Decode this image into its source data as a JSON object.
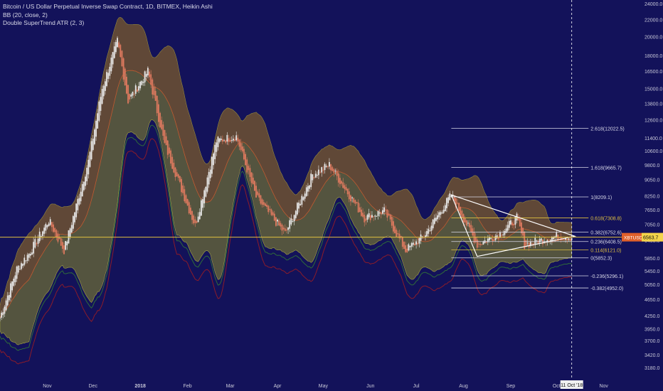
{
  "legend": {
    "title": "Bitcoin / US Dollar Perpetual Inverse Swap Contract, 1D, BITMEX, Heikin Ashi",
    "indicator_bb": "BB (20, close, 2)",
    "indicator_supertrend": "Double SuperTrend ATR (2, 3)"
  },
  "colors": {
    "background": "#13125a",
    "candle": "#e8e8e8",
    "candle_down": "#e07a5f",
    "bb_fill": "#8a8a2a",
    "upper_band_fill": "#6e3a2e",
    "supertrend_up": "#2f6b3a",
    "supertrend_down": "#8b1b2a",
    "fib_line": "#d8d8e8",
    "fib_gold": "#e0c040",
    "price_line": "#e0c040",
    "last_price_badge": "#e0602a",
    "triangle": "#ffffff"
  },
  "chart_data": {
    "type": "candlestick",
    "title": "Bitcoin / US Dollar Perpetual Inverse Swap Contract, 1D, BITMEX, Heikin Ashi",
    "y_scale": "log",
    "ylim": [
      3000,
      24500
    ],
    "y_ticks": [
      24000,
      22000,
      20000,
      18000,
      16500,
      15000,
      13800,
      12600,
      11400,
      10600,
      9800,
      9050,
      8250,
      7650,
      7050,
      6450,
      5850,
      5450,
      5050,
      4650,
      4250,
      3950,
      3700,
      3420,
      3180
    ],
    "x_ticks": [
      "Nov",
      "Dec",
      "2018",
      "Feb",
      "Mar",
      "Apr",
      "May",
      "Jun",
      "Jul",
      "Aug",
      "Sep",
      "Oct",
      "Nov"
    ],
    "x_ticks_bold": [
      "2018"
    ],
    "xlim": [
      "2017-10-01",
      "2018-11-24"
    ],
    "x_tick_dates": [
      "2017-11-01",
      "2017-12-01",
      "2018-01-01",
      "2018-02-01",
      "2018-03-01",
      "2018-04-01",
      "2018-05-01",
      "2018-06-01",
      "2018-07-01",
      "2018-08-01",
      "2018-09-01",
      "2018-10-01",
      "2018-11-01"
    ],
    "cursor_date_label": "11 Oct '18",
    "last_price": {
      "symbol": "XBTUSD",
      "value": 6563.7
    },
    "price_path": [
      [
        "2017-10-01",
        4200
      ],
      [
        "2017-10-12",
        5500
      ],
      [
        "2017-10-20",
        6000
      ],
      [
        "2017-11-02",
        7200
      ],
      [
        "2017-11-12",
        6100
      ],
      [
        "2017-11-28",
        10000
      ],
      [
        "2017-12-07",
        15000
      ],
      [
        "2017-12-17",
        19500
      ],
      [
        "2017-12-24",
        14000
      ],
      [
        "2018-01-06",
        16500
      ],
      [
        "2018-01-17",
        11000
      ],
      [
        "2018-02-06",
        7000
      ],
      [
        "2018-02-20",
        11200
      ],
      [
        "2018-03-05",
        11500
      ],
      [
        "2018-03-18",
        8200
      ],
      [
        "2018-04-06",
        6700
      ],
      [
        "2018-04-24",
        9300
      ],
      [
        "2018-05-05",
        9800
      ],
      [
        "2018-05-28",
        7300
      ],
      [
        "2018-06-10",
        7600
      ],
      [
        "2018-06-24",
        6100
      ],
      [
        "2018-07-06",
        6600
      ],
      [
        "2018-07-24",
        8300
      ],
      [
        "2018-08-10",
        6300
      ],
      [
        "2018-08-25",
        6700
      ],
      [
        "2018-09-05",
        7300
      ],
      [
        "2018-09-10",
        6300
      ],
      [
        "2018-10-01",
        6600
      ],
      [
        "2018-10-11",
        6560
      ]
    ],
    "fib_levels": [
      {
        "label": "2.618(12022.5)",
        "value": 12022.5,
        "highlight": false
      },
      {
        "label": "1.618(9665.7)",
        "value": 9665.7,
        "highlight": false
      },
      {
        "label": "1(8209.1)",
        "value": 8209.1,
        "highlight": false
      },
      {
        "label": "0.618(7308.8)",
        "value": 7308.8,
        "highlight": true
      },
      {
        "label": "0.382(6752.6)",
        "value": 6752.6,
        "highlight": false
      },
      {
        "label": "0.236(6408.5)",
        "value": 6408.5,
        "highlight": false
      },
      {
        "label": "0.114(6121.0)",
        "value": 6121.0,
        "highlight": true
      },
      {
        "label": "0(5852.3)",
        "value": 5852.3,
        "highlight": false
      },
      {
        "label": "-0.236(5296.1)",
        "value": 5296.1,
        "highlight": false
      },
      {
        "label": "-0.382(4952.0)",
        "value": 4952.0,
        "highlight": false
      }
    ],
    "fib_range": [
      "2018-07-24",
      "2018-10-22"
    ],
    "triangle": [
      [
        "2018-07-24",
        8300
      ],
      [
        "2018-10-13",
        6600
      ],
      [
        "2018-08-10",
        5900
      ]
    ],
    "grid": false,
    "legend_position": "top-left"
  }
}
